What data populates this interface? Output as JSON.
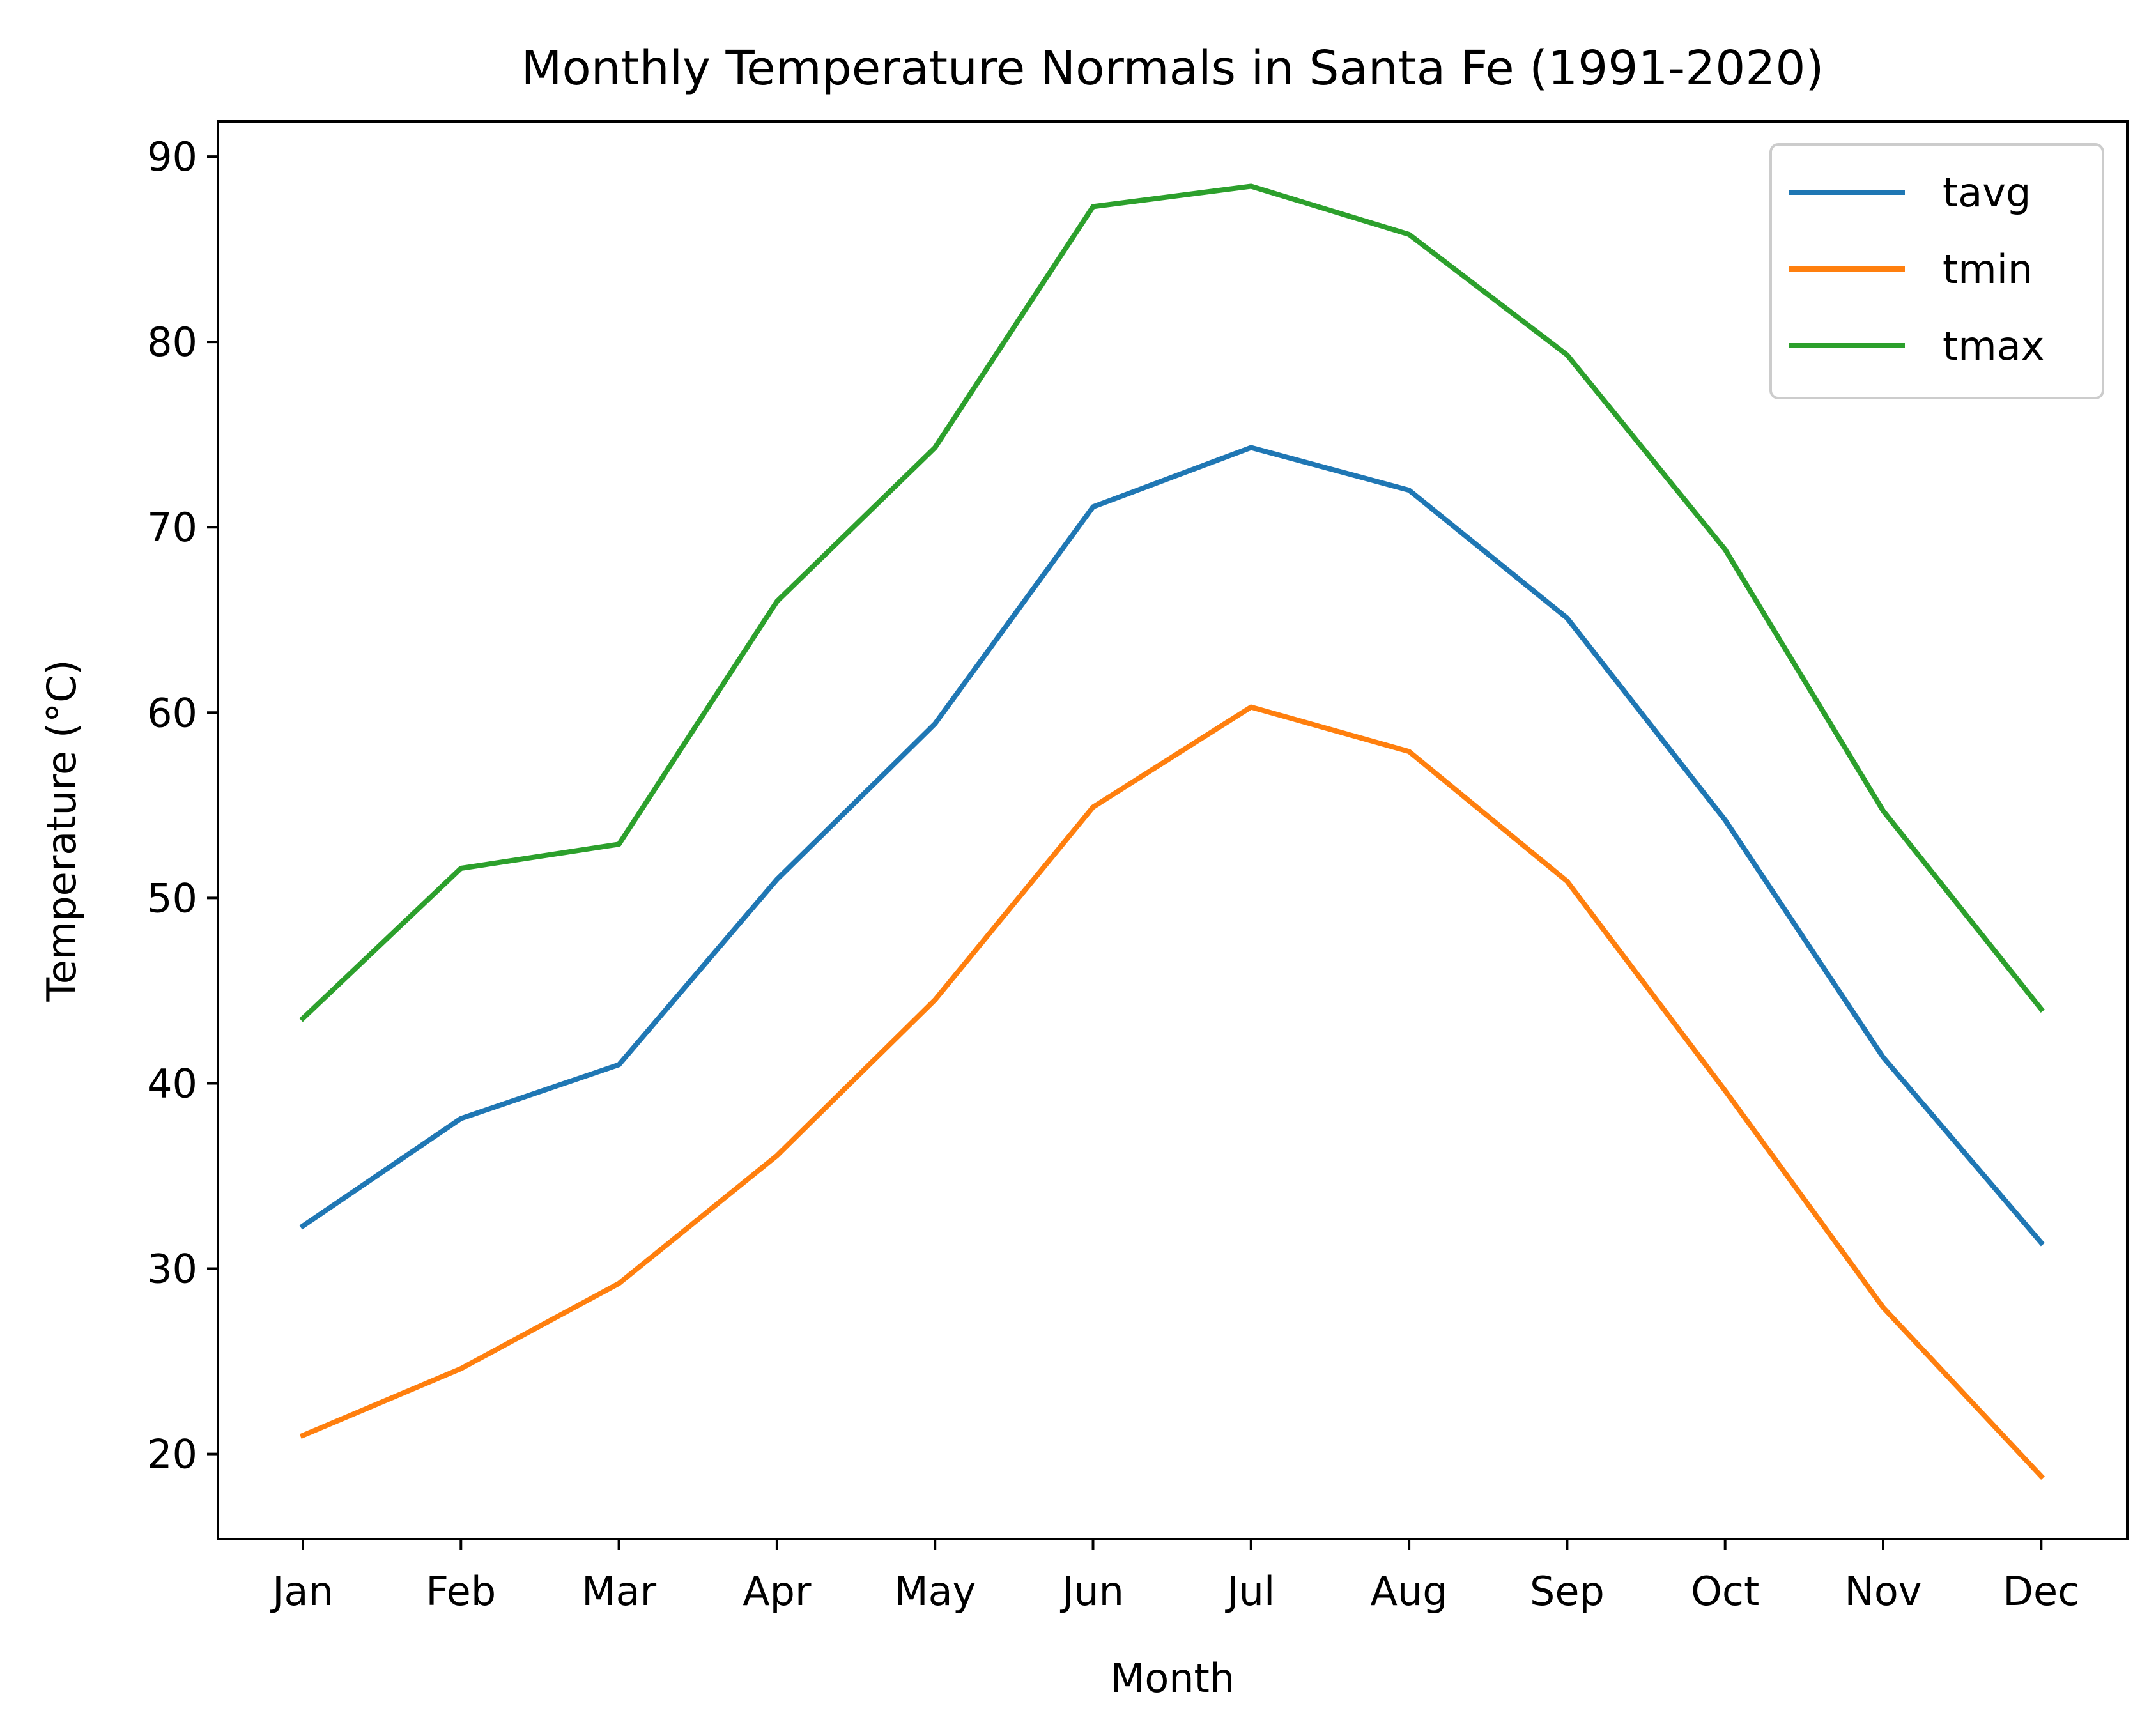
{
  "chart_data": {
    "type": "line",
    "title": "Monthly Temperature Normals in Santa Fe (1991-2020)",
    "xlabel": "Month",
    "ylabel": "Temperature (°C)",
    "categories": [
      "Jan",
      "Feb",
      "Mar",
      "Apr",
      "May",
      "Jun",
      "Jul",
      "Aug",
      "Sep",
      "Oct",
      "Nov",
      "Dec"
    ],
    "ylim": [
      15.4,
      91.9
    ],
    "yticks": [
      20,
      30,
      40,
      50,
      60,
      70,
      80,
      90
    ],
    "grid": false,
    "legend_position": "top-right",
    "series": [
      {
        "name": "tavg",
        "color": "#1f77b4",
        "values": [
          32.3,
          38.1,
          41.0,
          51.0,
          59.4,
          71.1,
          74.3,
          72.0,
          65.1,
          54.2,
          41.4,
          31.4
        ]
      },
      {
        "name": "tmin",
        "color": "#ff7f0e",
        "values": [
          21.0,
          24.6,
          29.2,
          36.1,
          44.5,
          54.9,
          60.3,
          57.9,
          50.9,
          39.6,
          27.9,
          18.8
        ]
      },
      {
        "name": "tmax",
        "color": "#2ca02c",
        "values": [
          43.5,
          51.6,
          52.9,
          66.0,
          74.3,
          87.3,
          88.4,
          85.8,
          79.3,
          68.8,
          54.7,
          44.0
        ]
      }
    ]
  }
}
